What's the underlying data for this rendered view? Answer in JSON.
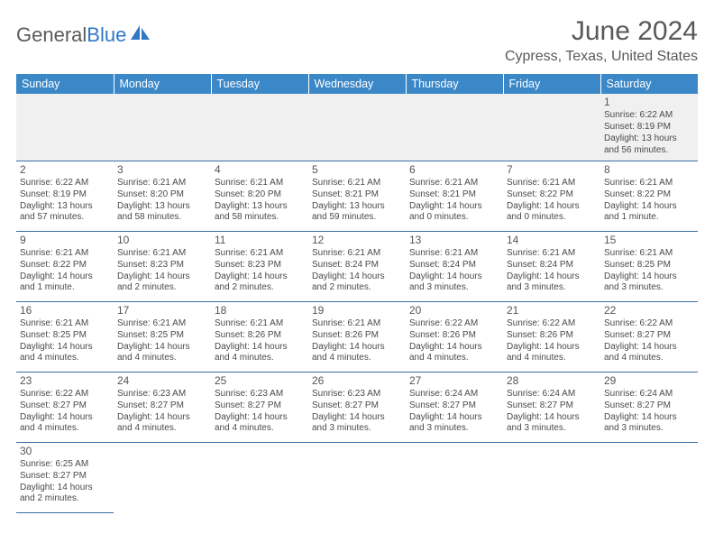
{
  "logo": {
    "text1": "General",
    "text2": "Blue",
    "sail_color": "#2f78c4"
  },
  "title": "June 2024",
  "location": "Cypress, Texas, United States",
  "title_color": "#595959",
  "header_bg": "#3b88c9",
  "header_fg": "#ffffff",
  "cell_border": "#3b6fa3",
  "weekdays": [
    "Sunday",
    "Monday",
    "Tuesday",
    "Wednesday",
    "Thursday",
    "Friday",
    "Saturday"
  ],
  "font_family": "Arial",
  "title_fontsize": 30,
  "location_fontsize": 16,
  "th_fontsize": 12.5,
  "cell_fontsize": 10,
  "daynum_fontsize": 12,
  "first_row_bg": "#f0f0f0",
  "weeks": [
    [
      null,
      null,
      null,
      null,
      null,
      null,
      {
        "n": "1",
        "sr": "Sunrise: 6:22 AM",
        "ss": "Sunset: 8:19 PM",
        "dl": "Daylight: 13 hours and 56 minutes."
      }
    ],
    [
      {
        "n": "2",
        "sr": "Sunrise: 6:22 AM",
        "ss": "Sunset: 8:19 PM",
        "dl": "Daylight: 13 hours and 57 minutes."
      },
      {
        "n": "3",
        "sr": "Sunrise: 6:21 AM",
        "ss": "Sunset: 8:20 PM",
        "dl": "Daylight: 13 hours and 58 minutes."
      },
      {
        "n": "4",
        "sr": "Sunrise: 6:21 AM",
        "ss": "Sunset: 8:20 PM",
        "dl": "Daylight: 13 hours and 58 minutes."
      },
      {
        "n": "5",
        "sr": "Sunrise: 6:21 AM",
        "ss": "Sunset: 8:21 PM",
        "dl": "Daylight: 13 hours and 59 minutes."
      },
      {
        "n": "6",
        "sr": "Sunrise: 6:21 AM",
        "ss": "Sunset: 8:21 PM",
        "dl": "Daylight: 14 hours and 0 minutes."
      },
      {
        "n": "7",
        "sr": "Sunrise: 6:21 AM",
        "ss": "Sunset: 8:22 PM",
        "dl": "Daylight: 14 hours and 0 minutes."
      },
      {
        "n": "8",
        "sr": "Sunrise: 6:21 AM",
        "ss": "Sunset: 8:22 PM",
        "dl": "Daylight: 14 hours and 1 minute."
      }
    ],
    [
      {
        "n": "9",
        "sr": "Sunrise: 6:21 AM",
        "ss": "Sunset: 8:22 PM",
        "dl": "Daylight: 14 hours and 1 minute."
      },
      {
        "n": "10",
        "sr": "Sunrise: 6:21 AM",
        "ss": "Sunset: 8:23 PM",
        "dl": "Daylight: 14 hours and 2 minutes."
      },
      {
        "n": "11",
        "sr": "Sunrise: 6:21 AM",
        "ss": "Sunset: 8:23 PM",
        "dl": "Daylight: 14 hours and 2 minutes."
      },
      {
        "n": "12",
        "sr": "Sunrise: 6:21 AM",
        "ss": "Sunset: 8:24 PM",
        "dl": "Daylight: 14 hours and 2 minutes."
      },
      {
        "n": "13",
        "sr": "Sunrise: 6:21 AM",
        "ss": "Sunset: 8:24 PM",
        "dl": "Daylight: 14 hours and 3 minutes."
      },
      {
        "n": "14",
        "sr": "Sunrise: 6:21 AM",
        "ss": "Sunset: 8:24 PM",
        "dl": "Daylight: 14 hours and 3 minutes."
      },
      {
        "n": "15",
        "sr": "Sunrise: 6:21 AM",
        "ss": "Sunset: 8:25 PM",
        "dl": "Daylight: 14 hours and 3 minutes."
      }
    ],
    [
      {
        "n": "16",
        "sr": "Sunrise: 6:21 AM",
        "ss": "Sunset: 8:25 PM",
        "dl": "Daylight: 14 hours and 4 minutes."
      },
      {
        "n": "17",
        "sr": "Sunrise: 6:21 AM",
        "ss": "Sunset: 8:25 PM",
        "dl": "Daylight: 14 hours and 4 minutes."
      },
      {
        "n": "18",
        "sr": "Sunrise: 6:21 AM",
        "ss": "Sunset: 8:26 PM",
        "dl": "Daylight: 14 hours and 4 minutes."
      },
      {
        "n": "19",
        "sr": "Sunrise: 6:21 AM",
        "ss": "Sunset: 8:26 PM",
        "dl": "Daylight: 14 hours and 4 minutes."
      },
      {
        "n": "20",
        "sr": "Sunrise: 6:22 AM",
        "ss": "Sunset: 8:26 PM",
        "dl": "Daylight: 14 hours and 4 minutes."
      },
      {
        "n": "21",
        "sr": "Sunrise: 6:22 AM",
        "ss": "Sunset: 8:26 PM",
        "dl": "Daylight: 14 hours and 4 minutes."
      },
      {
        "n": "22",
        "sr": "Sunrise: 6:22 AM",
        "ss": "Sunset: 8:27 PM",
        "dl": "Daylight: 14 hours and 4 minutes."
      }
    ],
    [
      {
        "n": "23",
        "sr": "Sunrise: 6:22 AM",
        "ss": "Sunset: 8:27 PM",
        "dl": "Daylight: 14 hours and 4 minutes."
      },
      {
        "n": "24",
        "sr": "Sunrise: 6:23 AM",
        "ss": "Sunset: 8:27 PM",
        "dl": "Daylight: 14 hours and 4 minutes."
      },
      {
        "n": "25",
        "sr": "Sunrise: 6:23 AM",
        "ss": "Sunset: 8:27 PM",
        "dl": "Daylight: 14 hours and 4 minutes."
      },
      {
        "n": "26",
        "sr": "Sunrise: 6:23 AM",
        "ss": "Sunset: 8:27 PM",
        "dl": "Daylight: 14 hours and 3 minutes."
      },
      {
        "n": "27",
        "sr": "Sunrise: 6:24 AM",
        "ss": "Sunset: 8:27 PM",
        "dl": "Daylight: 14 hours and 3 minutes."
      },
      {
        "n": "28",
        "sr": "Sunrise: 6:24 AM",
        "ss": "Sunset: 8:27 PM",
        "dl": "Daylight: 14 hours and 3 minutes."
      },
      {
        "n": "29",
        "sr": "Sunrise: 6:24 AM",
        "ss": "Sunset: 8:27 PM",
        "dl": "Daylight: 14 hours and 3 minutes."
      }
    ],
    [
      {
        "n": "30",
        "sr": "Sunrise: 6:25 AM",
        "ss": "Sunset: 8:27 PM",
        "dl": "Daylight: 14 hours and 2 minutes."
      },
      null,
      null,
      null,
      null,
      null,
      null
    ]
  ]
}
